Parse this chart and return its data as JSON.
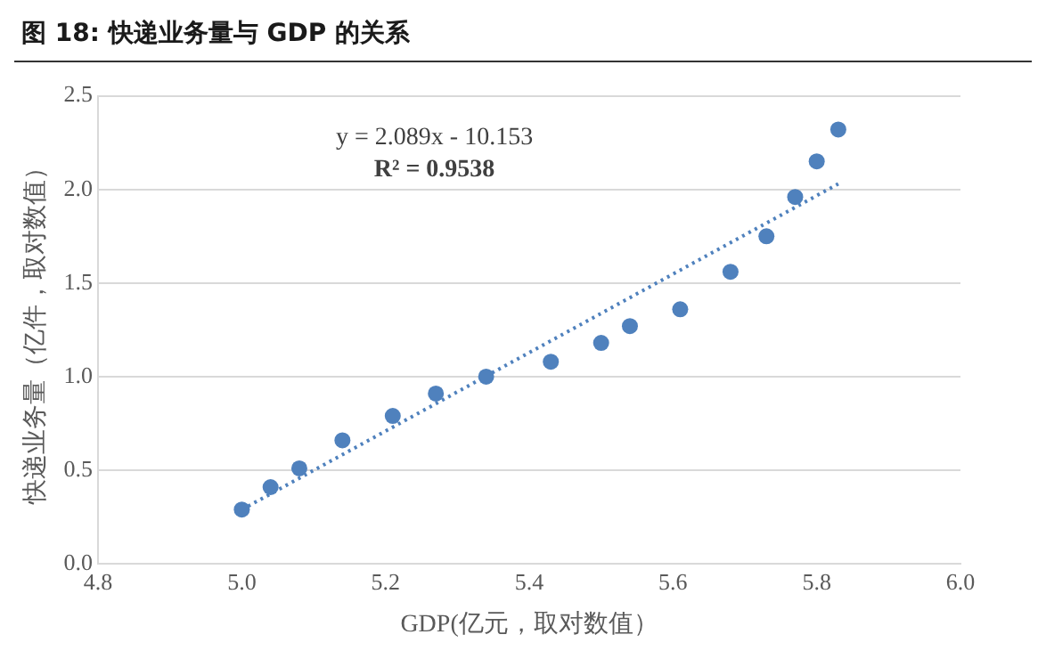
{
  "chart_data": {
    "type": "scatter",
    "title": "图 18: 快递业务量与 GDP 的关系",
    "xlabel": "GDP(亿元，取对数值）",
    "ylabel": "快递业务量（亿件，取对数值）",
    "annotations": [
      "y = 2.089x - 10.153",
      "R² = 0.9538"
    ],
    "xlim": [
      4.8,
      6.0
    ],
    "xticks": [
      {
        "value": 4.8,
        "label": "4.8"
      },
      {
        "value": 5.0,
        "label": "5.0"
      },
      {
        "value": 5.2,
        "label": "5.2"
      },
      {
        "value": 5.4,
        "label": "5.4"
      },
      {
        "value": 5.6,
        "label": "5.6"
      },
      {
        "value": 5.8,
        "label": "5.8"
      },
      {
        "value": 6.0,
        "label": "6.0"
      }
    ],
    "ylim": [
      0,
      2.5
    ],
    "yticks": [
      {
        "value": 0,
        "label": "0.0"
      },
      {
        "value": 0.5,
        "label": "0.5"
      },
      {
        "value": 1.0,
        "label": "1.0"
      },
      {
        "value": 1.5,
        "label": "1.5"
      },
      {
        "value": 2.0,
        "label": "2.0"
      },
      {
        "value": 2.5,
        "label": "2.5"
      }
    ],
    "grid": "y",
    "legend": false,
    "marker": "circle",
    "series": [
      {
        "type": "scatter",
        "color": "#4f81bd",
        "x": [
          5.0,
          5.04,
          5.08,
          5.14,
          5.21,
          5.27,
          5.34,
          5.43,
          5.5,
          5.54,
          5.61,
          5.68,
          5.73,
          5.77,
          5.8,
          5.83
        ],
        "values": [
          0.29,
          0.41,
          0.51,
          0.66,
          0.79,
          0.91,
          1.0,
          1.08,
          1.18,
          1.27,
          1.36,
          1.56,
          1.75,
          1.96,
          2.15,
          2.32
        ]
      },
      {
        "type": "line",
        "color": "#4f81bd",
        "line_style": "dotted",
        "marker": "none",
        "x": [
          5.0,
          5.83
        ],
        "values": [
          0.29,
          2.03
        ]
      }
    ]
  }
}
